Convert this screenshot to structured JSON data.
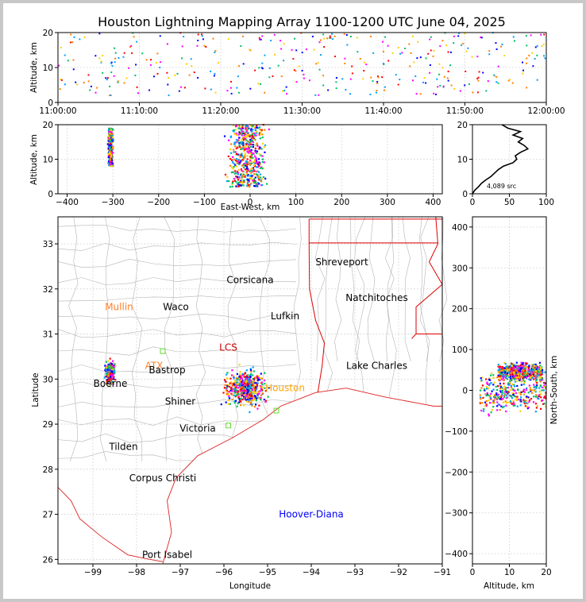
{
  "title": "Houston Lightning Mapping Array 1100-1200 UTC June 04, 2025",
  "colors": {
    "frame": "#c8c8c8",
    "grid": "#d8d8d8",
    "county": "#b4b4b4",
    "state": "#dd0000",
    "coast": "#dd2222",
    "dot_seq": [
      "#ff00ff",
      "#0000ff",
      "#00a0ff",
      "#00c060",
      "#ffd000",
      "#ff8000",
      "#ff0000"
    ]
  },
  "chart_data": [
    {
      "type": "scatter",
      "name": "altitude-vs-time",
      "ylabel": "Altitude, km",
      "xlabel": "",
      "xticks": [
        "11:00:00",
        "11:10:00",
        "11:20:00",
        "11:30:00",
        "11:40:00",
        "11:50:00",
        "12:00:00"
      ],
      "xlim_minutes": [
        0,
        60
      ],
      "ylim": [
        0,
        20
      ],
      "yticks": [
        0,
        10,
        20
      ],
      "grid": true
    },
    {
      "type": "scatter",
      "name": "altitude-vs-east-west",
      "ylabel": "Altitude, km",
      "xlabel": "East-West, km",
      "xlim": [
        -420,
        420
      ],
      "xticks": [
        -400,
        -300,
        -200,
        -100,
        0,
        100,
        200,
        300,
        400
      ],
      "ylim": [
        0,
        20
      ],
      "yticks": [
        0,
        10,
        20
      ],
      "clusters": [
        {
          "x_center": -305,
          "x_spread": 8,
          "alt_range": [
            8,
            19
          ]
        },
        {
          "x_center": -5,
          "x_spread": 38,
          "alt_range": [
            2,
            20
          ]
        }
      ],
      "grid": true
    },
    {
      "type": "line",
      "name": "source-altitude-histogram",
      "xlim": [
        0,
        100
      ],
      "xticks": [
        0,
        50,
        100
      ],
      "ylim": [
        0,
        20
      ],
      "yticks": [
        0,
        10,
        20
      ],
      "annotation": "4,089 src",
      "profile": [
        [
          0,
          0
        ],
        [
          3,
          1
        ],
        [
          8,
          2
        ],
        [
          12,
          3
        ],
        [
          18,
          4
        ],
        [
          25,
          5
        ],
        [
          30,
          6
        ],
        [
          35,
          7
        ],
        [
          42,
          8
        ],
        [
          55,
          9
        ],
        [
          60,
          10
        ],
        [
          58,
          11
        ],
        [
          65,
          12
        ],
        [
          75,
          13
        ],
        [
          70,
          14
        ],
        [
          62,
          15
        ],
        [
          68,
          16
        ],
        [
          55,
          17
        ],
        [
          65,
          18
        ],
        [
          48,
          19
        ],
        [
          40,
          20
        ]
      ]
    },
    {
      "type": "scatter",
      "name": "plan-view-map",
      "xlabel": "Longitude",
      "ylabel": "Latitude",
      "xlim": [
        -99.8,
        -91
      ],
      "ylim": [
        25.9,
        33.6
      ],
      "xticks": [
        -99,
        -98,
        -97,
        -96,
        -95,
        -94,
        -93,
        -92,
        -91
      ],
      "yticks": [
        26,
        27,
        28,
        29,
        30,
        31,
        32,
        33
      ],
      "cities": [
        {
          "name": "Shreveport",
          "lon": -93.3,
          "lat": 32.6,
          "color": "#000000"
        },
        {
          "name": "Corsicana",
          "lon": -95.4,
          "lat": 32.2,
          "color": "#000000"
        },
        {
          "name": "Natchitoches",
          "lon": -92.5,
          "lat": 31.8,
          "color": "#000000"
        },
        {
          "name": "Mullin",
          "lon": -98.4,
          "lat": 31.6,
          "color": "#ff7f2a"
        },
        {
          "name": "Waco",
          "lon": -97.1,
          "lat": 31.6,
          "color": "#000000"
        },
        {
          "name": "Lufkin",
          "lon": -94.6,
          "lat": 31.4,
          "color": "#000000"
        },
        {
          "name": "LCS",
          "lon": -95.9,
          "lat": 30.7,
          "color": "#cc0000"
        },
        {
          "name": "ATX",
          "lon": -97.6,
          "lat": 30.3,
          "color": "#ff7f2a"
        },
        {
          "name": "Lake Charles",
          "lon": -92.5,
          "lat": 30.3,
          "color": "#000000"
        },
        {
          "name": "Bastrop",
          "lon": -97.3,
          "lat": 30.2,
          "color": "#000000"
        },
        {
          "name": "Boerne",
          "lon": -98.6,
          "lat": 29.9,
          "color": "#000000"
        },
        {
          "name": "Houston",
          "lon": -94.6,
          "lat": 29.8,
          "color": "#ffa500"
        },
        {
          "name": "Shiner",
          "lon": -97.0,
          "lat": 29.5,
          "color": "#000000"
        },
        {
          "name": "Victoria",
          "lon": -96.6,
          "lat": 28.9,
          "color": "#000000"
        },
        {
          "name": "Tilden",
          "lon": -98.3,
          "lat": 28.5,
          "color": "#000000"
        },
        {
          "name": "Corpus Christi",
          "lon": -97.4,
          "lat": 27.8,
          "color": "#000000"
        },
        {
          "name": "Hoover-Diana",
          "lon": -94.0,
          "lat": 27.0,
          "color": "#0000ff"
        },
        {
          "name": "Port Isabel",
          "lon": -97.3,
          "lat": 26.1,
          "color": "#000000"
        }
      ],
      "stations": [
        {
          "lon": -97.4,
          "lat": 30.62
        },
        {
          "lon": -95.9,
          "lat": 28.97
        },
        {
          "lon": -94.8,
          "lat": 29.3
        }
      ],
      "clusters": [
        {
          "lon_center": -98.6,
          "lat_center": 30.15,
          "lon_spread": 0.09,
          "lat_spread": 0.2
        },
        {
          "lon_center": -95.5,
          "lat_center": 29.8,
          "lon_spread": 0.4,
          "lat_spread": 0.35
        }
      ]
    },
    {
      "type": "scatter",
      "name": "north-south-vs-altitude",
      "xlabel": "Altitude, km",
      "ylabel": "North-South, km",
      "xlim": [
        0,
        20
      ],
      "xticks": [
        0,
        10,
        20
      ],
      "ylim": [
        -425,
        425
      ],
      "yticks": [
        -400,
        -300,
        -200,
        -100,
        0,
        100,
        200,
        300,
        400
      ],
      "clusters": [
        {
          "ns_center": 45,
          "ns_spread": 18,
          "alt_range": [
            7,
            19
          ]
        },
        {
          "ns_center": -10,
          "ns_spread": 45,
          "alt_range": [
            2,
            20
          ]
        }
      ]
    }
  ]
}
